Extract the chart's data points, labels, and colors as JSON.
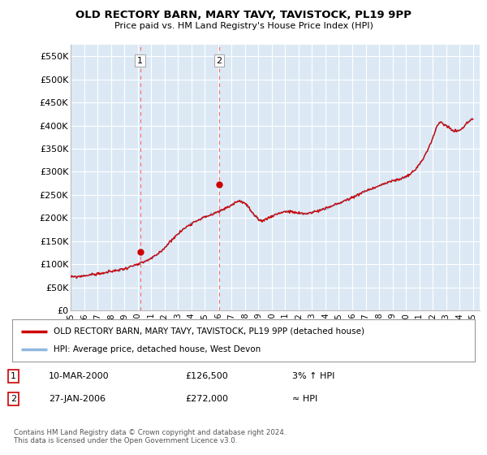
{
  "title": "OLD RECTORY BARN, MARY TAVY, TAVISTOCK, PL19 9PP",
  "subtitle": "Price paid vs. HM Land Registry's House Price Index (HPI)",
  "ylabel_ticks": [
    "£0",
    "£50K",
    "£100K",
    "£150K",
    "£200K",
    "£250K",
    "£300K",
    "£350K",
    "£400K",
    "£450K",
    "£500K",
    "£550K"
  ],
  "ytick_values": [
    0,
    50000,
    100000,
    150000,
    200000,
    250000,
    300000,
    350000,
    400000,
    450000,
    500000,
    550000
  ],
  "ylim": [
    0,
    575000
  ],
  "xlim_start": 1995.0,
  "xlim_end": 2025.5,
  "background_color": "#ffffff",
  "plot_bg_color": "#dce9f5",
  "grid_color": "#ffffff",
  "hpi_line_color": "#90b8e0",
  "price_line_color": "#cc0000",
  "marker_color": "#cc0000",
  "vline_color": "#ff6666",
  "purchase1_x": 2000.19,
  "purchase1_y": 126500,
  "purchase1_label": "1",
  "purchase2_x": 2006.07,
  "purchase2_y": 272000,
  "purchase2_label": "2",
  "legend_label1": "OLD RECTORY BARN, MARY TAVY, TAVISTOCK, PL19 9PP (detached house)",
  "legend_label2": "HPI: Average price, detached house, West Devon",
  "table_row1": [
    "1",
    "10-MAR-2000",
    "£126,500",
    "3% ↑ HPI"
  ],
  "table_row2": [
    "2",
    "27-JAN-2006",
    "£272,000",
    "≈ HPI"
  ],
  "footer": "Contains HM Land Registry data © Crown copyright and database right 2024.\nThis data is licensed under the Open Government Licence v3.0.",
  "xtick_years": [
    1995,
    1996,
    1997,
    1998,
    1999,
    2000,
    2001,
    2002,
    2003,
    2004,
    2005,
    2006,
    2007,
    2008,
    2009,
    2010,
    2011,
    2012,
    2013,
    2014,
    2015,
    2016,
    2017,
    2018,
    2019,
    2020,
    2021,
    2022,
    2023,
    2024,
    2025
  ],
  "hpi_anchors_x": [
    1995.0,
    1995.5,
    1996.0,
    1996.5,
    1997.0,
    1997.5,
    1998.0,
    1998.5,
    1999.0,
    1999.5,
    2000.0,
    2000.5,
    2001.0,
    2001.5,
    2002.0,
    2002.5,
    2003.0,
    2003.5,
    2004.0,
    2004.5,
    2005.0,
    2005.5,
    2006.0,
    2006.5,
    2007.0,
    2007.3,
    2007.6,
    2008.0,
    2008.3,
    2008.6,
    2009.0,
    2009.3,
    2009.6,
    2010.0,
    2010.5,
    2011.0,
    2011.5,
    2012.0,
    2012.5,
    2013.0,
    2013.5,
    2014.0,
    2014.5,
    2015.0,
    2015.5,
    2016.0,
    2016.5,
    2017.0,
    2017.5,
    2018.0,
    2018.5,
    2019.0,
    2019.5,
    2020.0,
    2020.3,
    2020.6,
    2021.0,
    2021.5,
    2022.0,
    2022.3,
    2022.6,
    2023.0,
    2023.3,
    2023.6,
    2024.0,
    2024.3,
    2024.6,
    2025.0
  ],
  "hpi_anchors_y": [
    72000,
    73000,
    75000,
    77000,
    79000,
    81000,
    84000,
    87000,
    90000,
    95000,
    99000,
    105000,
    112000,
    122000,
    135000,
    152000,
    165000,
    178000,
    188000,
    196000,
    202000,
    207000,
    213000,
    220000,
    228000,
    234000,
    237000,
    232000,
    222000,
    208000,
    196000,
    194000,
    198000,
    204000,
    210000,
    214000,
    213000,
    210000,
    209000,
    212000,
    216000,
    220000,
    226000,
    232000,
    238000,
    244000,
    252000,
    258000,
    264000,
    270000,
    275000,
    280000,
    284000,
    288000,
    295000,
    302000,
    315000,
    340000,
    372000,
    398000,
    408000,
    400000,
    393000,
    388000,
    390000,
    396000,
    408000,
    415000
  ]
}
